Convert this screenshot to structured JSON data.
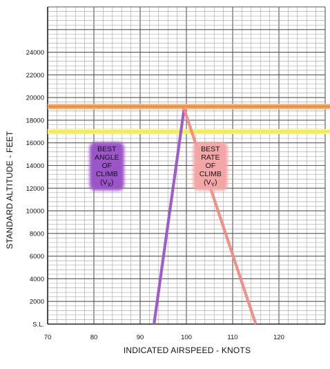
{
  "chart_data": {
    "type": "line",
    "xlabel": "INDICATED AIRSPEED - KNOTS",
    "ylabel": "STANDARD ALTITUDE - FEET",
    "xlim": [
      70,
      130
    ],
    "ylim": [
      0,
      28000
    ],
    "x_ticks": [
      {
        "value": 70,
        "label": "70"
      },
      {
        "value": 80,
        "label": "80"
      },
      {
        "value": 90,
        "label": "90"
      },
      {
        "value": 100,
        "label": "100"
      },
      {
        "value": 110,
        "label": "110"
      },
      {
        "value": 120,
        "label": "120"
      }
    ],
    "y_ticks": [
      {
        "value": 0,
        "label": "S.L."
      },
      {
        "value": 2000,
        "label": "2000"
      },
      {
        "value": 4000,
        "label": "4000"
      },
      {
        "value": 6000,
        "label": "6000"
      },
      {
        "value": 8000,
        "label": "8000"
      },
      {
        "value": 10000,
        "label": "10000"
      },
      {
        "value": 12000,
        "label": "12000"
      },
      {
        "value": 14000,
        "label": "14000"
      },
      {
        "value": 16000,
        "label": "16000"
      },
      {
        "value": 18000,
        "label": "18000"
      },
      {
        "value": 20000,
        "label": "20000"
      },
      {
        "value": 22000,
        "label": "22000"
      },
      {
        "value": 24000,
        "label": "24000"
      }
    ],
    "grid": true,
    "minor_grid_per_major": 5,
    "series": [
      {
        "name": "BEST ANGLE OF CLIMB (VX)",
        "color": "#9b55c8",
        "points": [
          [
            93,
            0
          ],
          [
            99.5,
            19000
          ]
        ]
      },
      {
        "name": "BEST RATE OF CLIMB (VY)",
        "color": "#ef8c84",
        "points": [
          [
            115,
            0
          ],
          [
            99.5,
            19000
          ]
        ]
      }
    ],
    "reference_lines": [
      {
        "y": 19200,
        "color": "#ef9a3a"
      },
      {
        "y": 17000,
        "color": "#f5ec3c"
      }
    ],
    "annotations": [
      {
        "lines": [
          "BEST",
          "ANGLE",
          "OF",
          "CLIMB"
        ],
        "sub_main": "(V",
        "sub_sub": "X",
        "sub_close": ")",
        "color": "#9b55c8",
        "x": 82.8,
        "y": 13800
      },
      {
        "lines": [
          "BEST",
          "RATE",
          "OF",
          "CLIMB"
        ],
        "sub_main": "(V",
        "sub_sub": "Y",
        "sub_close": ")",
        "color": "#f3a6a6",
        "x": 105.2,
        "y": 13800
      }
    ]
  }
}
